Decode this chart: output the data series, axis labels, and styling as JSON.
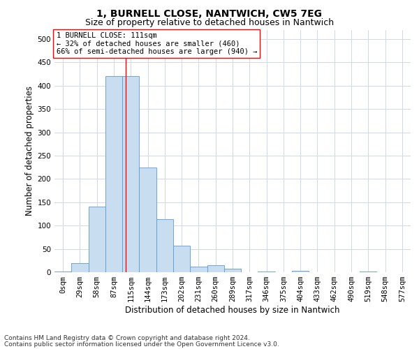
{
  "title": "1, BURNELL CLOSE, NANTWICH, CW5 7EG",
  "subtitle": "Size of property relative to detached houses in Nantwich",
  "xlabel": "Distribution of detached houses by size in Nantwich",
  "ylabel": "Number of detached properties",
  "footer_line1": "Contains HM Land Registry data © Crown copyright and database right 2024.",
  "footer_line2": "Contains public sector information licensed under the Open Government Licence v3.0.",
  "bin_labels": [
    "0sqm",
    "29sqm",
    "58sqm",
    "87sqm",
    "115sqm",
    "144sqm",
    "173sqm",
    "202sqm",
    "231sqm",
    "260sqm",
    "289sqm",
    "317sqm",
    "346sqm",
    "375sqm",
    "404sqm",
    "433sqm",
    "462sqm",
    "490sqm",
    "519sqm",
    "548sqm",
    "577sqm"
  ],
  "bar_values": [
    2,
    20,
    140,
    420,
    420,
    225,
    113,
    57,
    12,
    15,
    7,
    0,
    2,
    0,
    3,
    0,
    0,
    0,
    1,
    0,
    0
  ],
  "bar_color": "#c9ddf0",
  "bar_edge_color": "#5b9bd5",
  "red_line_x": 3.72,
  "annotation_line1": "1 BURNELL CLOSE: 111sqm",
  "annotation_line2": "← 32% of detached houses are smaller (460)",
  "annotation_line3": "66% of semi-detached houses are larger (940) →",
  "annotation_box_color": "white",
  "annotation_box_edge_color": "red",
  "ylim": [
    0,
    520
  ],
  "yticks": [
    0,
    50,
    100,
    150,
    200,
    250,
    300,
    350,
    400,
    450,
    500
  ],
  "background_color": "white",
  "grid_color": "#d0d8e8",
  "title_fontsize": 10,
  "subtitle_fontsize": 9,
  "axis_label_fontsize": 8.5,
  "tick_fontsize": 7.5,
  "annotation_fontsize": 7.5,
  "footer_fontsize": 6.5
}
